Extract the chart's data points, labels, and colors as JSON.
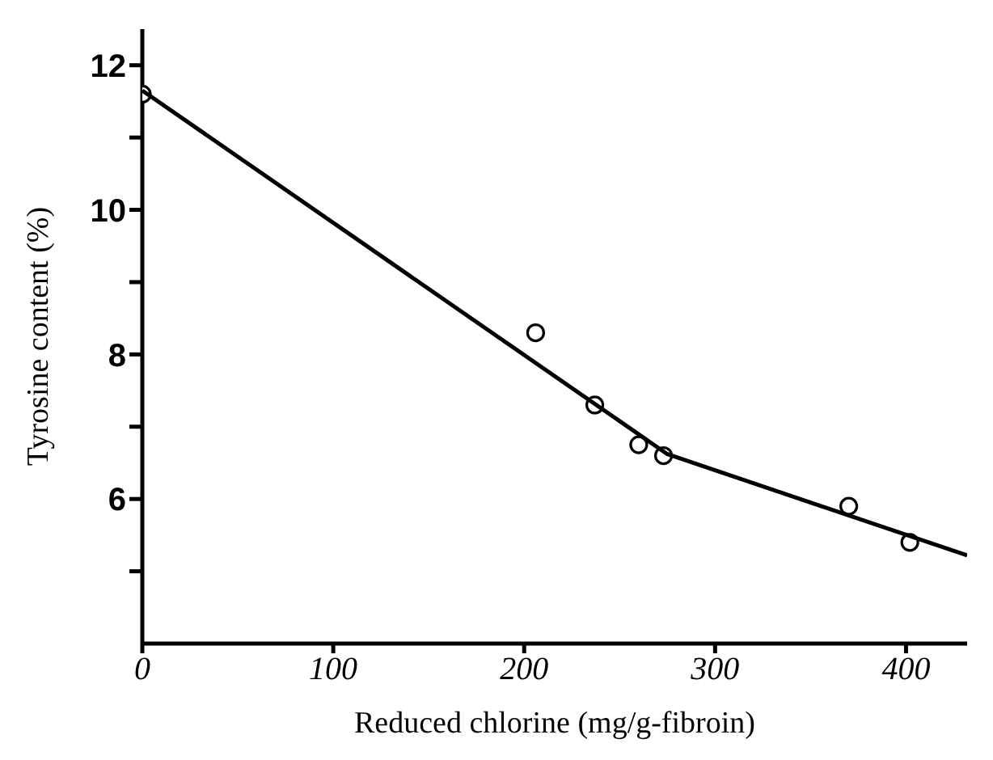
{
  "chart_data": {
    "type": "scatter",
    "xlabel": "Reduced chlorine (mg/g-fibroin)",
    "ylabel": "Tyrosine content (%)",
    "xlim": [
      0,
      432
    ],
    "xticks": [
      0,
      100,
      200,
      300,
      400
    ],
    "ylim": [
      4,
      12.5
    ],
    "yticks": [
      {
        "value": 5,
        "label": null
      },
      6,
      {
        "value": 7,
        "label": null
      },
      8,
      {
        "value": 9,
        "label": null
      },
      10,
      {
        "value": 11,
        "label": null
      },
      12
    ],
    "grid": false,
    "legend": false,
    "series": [
      {
        "color": "#000000",
        "marker": "circle",
        "x": [
          0,
          206,
          237,
          260,
          273,
          370,
          402
        ],
        "values": [
          11.6,
          8.3,
          7.3,
          6.75,
          6.6,
          5.9,
          5.4
        ]
      },
      {
        "type": "line",
        "color": "#000000",
        "marker": "none",
        "line_style": "solid",
        "x": [
          0,
          275,
          432
        ],
        "values": [
          11.65,
          6.62,
          5.22
        ]
      }
    ]
  }
}
